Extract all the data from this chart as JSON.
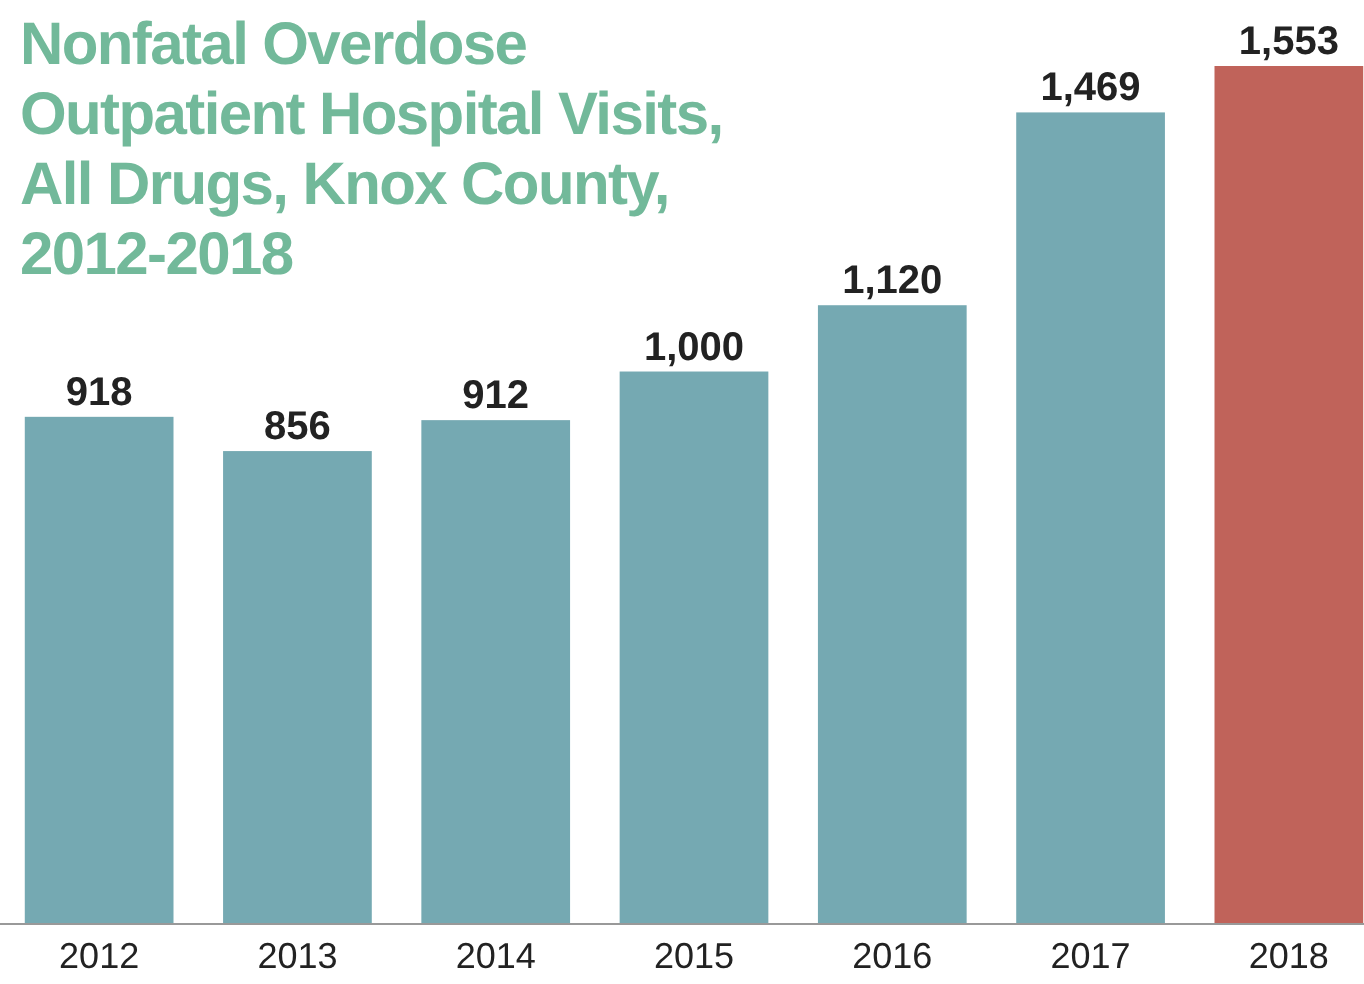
{
  "chart_data": {
    "type": "bar",
    "title": "Nonfatal Overdose Outpatient Hospital Visits, All Drugs, Knox County, 2012-2018",
    "categories": [
      "2012",
      "2013",
      "2014",
      "2015",
      "2016",
      "2017",
      "2018"
    ],
    "values": [
      918,
      856,
      912,
      1000,
      1120,
      1469,
      1553
    ],
    "colors": [
      "#75a9b2",
      "#75a9b2",
      "#75a9b2",
      "#75a9b2",
      "#75a9b2",
      "#75a9b2",
      "#c0635a"
    ],
    "value_labels": [
      "918",
      "856",
      "912",
      "1,000",
      "1,120",
      "1,469",
      "1,553"
    ]
  }
}
